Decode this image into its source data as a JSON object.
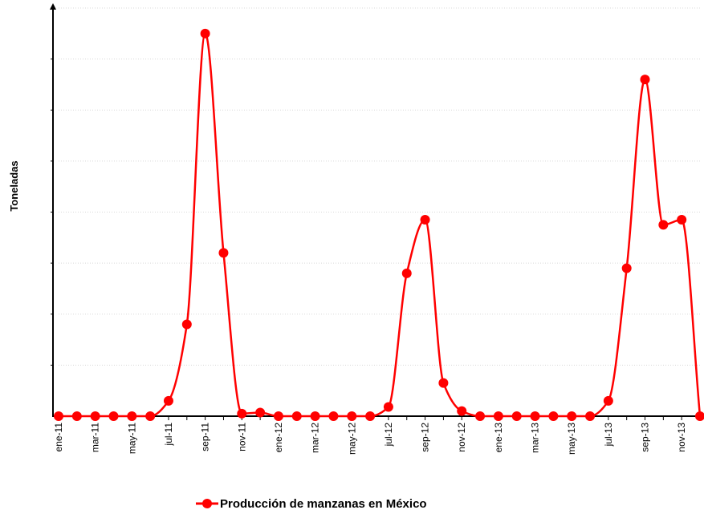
{
  "chart_data": {
    "type": "line",
    "title": "",
    "xlabel": "",
    "ylabel": "Toneladas",
    "x": [
      "ene-11",
      "feb-11",
      "mar-11",
      "abr-11",
      "may-11",
      "jun-11",
      "jul-11",
      "ago-11",
      "sep-11",
      "oct-11",
      "nov-11",
      "dic-11",
      "ene-12",
      "feb-12",
      "mar-12",
      "abr-12",
      "may-12",
      "jun-12",
      "jul-12",
      "ago-12",
      "sep-12",
      "oct-12",
      "nov-12",
      "dic-12",
      "ene-13",
      "feb-13",
      "mar-13",
      "abr-13",
      "may-13",
      "jun-13",
      "jul-13",
      "ago-13",
      "sep-13",
      "oct-13",
      "nov-13",
      "dic-13"
    ],
    "tick_labels": [
      "ene-11",
      "mar-11",
      "may-11",
      "jul-11",
      "sep-11",
      "nov-11",
      "ene-12",
      "mar-12",
      "may-12",
      "jul-12",
      "sep-12",
      "nov-12",
      "ene-13",
      "mar-13",
      "may-13",
      "jul-13",
      "sep-13",
      "nov-13"
    ],
    "ylim": [
      0,
      8
    ],
    "y_ticks_labeled": false,
    "grid": true,
    "legend": "bottom-center",
    "series": [
      {
        "name": "Producción de manzanas en México",
        "color": "#ff0000",
        "values": [
          0,
          0,
          0,
          0,
          0,
          0,
          0.3,
          1.8,
          7.5,
          3.2,
          0.05,
          0.07,
          0,
          0,
          0,
          0,
          0,
          0,
          0.18,
          2.8,
          3.85,
          0.65,
          0.1,
          0,
          0,
          0,
          0,
          0,
          0,
          0,
          0.3,
          2.9,
          6.6,
          3.75,
          3.85,
          0
        ]
      }
    ]
  }
}
